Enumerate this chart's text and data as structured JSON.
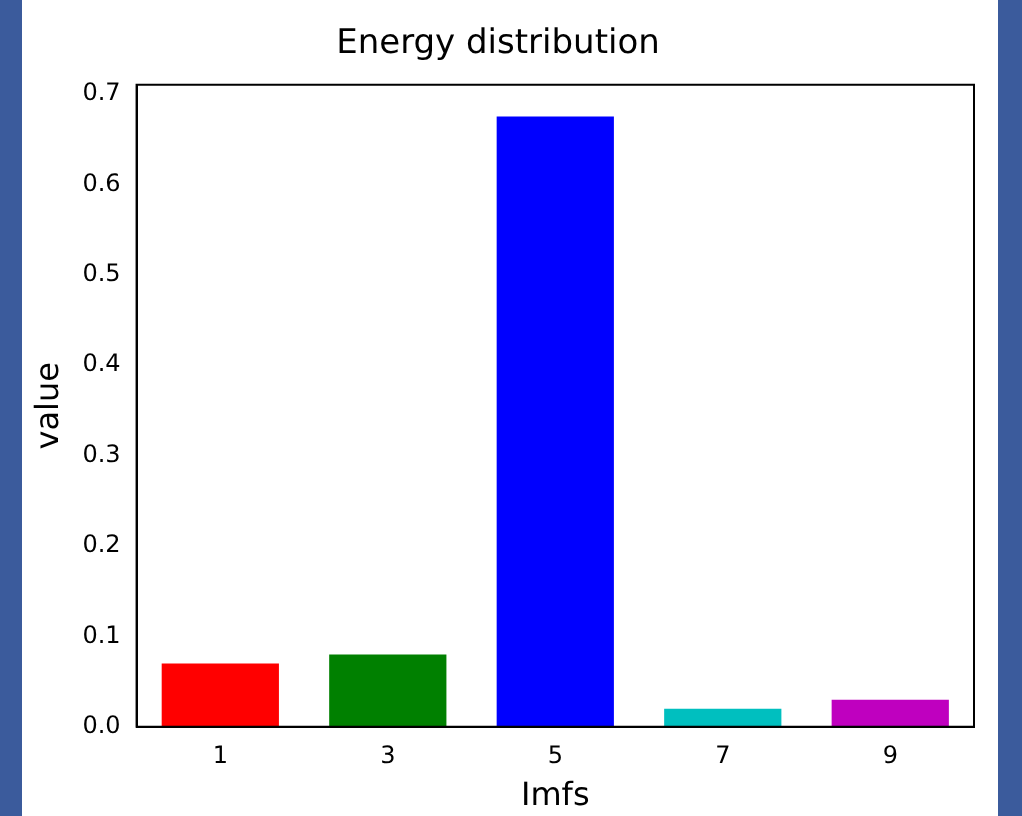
{
  "chart_data": {
    "type": "bar",
    "title": "Energy distribution",
    "xlabel": "Imfs",
    "ylabel": "value",
    "categories": [
      "1",
      "3",
      "5",
      "7",
      "9"
    ],
    "values": [
      0.07,
      0.08,
      0.675,
      0.02,
      0.03
    ],
    "colors": [
      "#ff0000",
      "#008000",
      "#0000ff",
      "#00bfbf",
      "#bf00bf"
    ],
    "ylim": [
      0,
      0.71
    ],
    "yticks": [
      {
        "value": 0,
        "label": "0.0"
      },
      0.1,
      0.2,
      0.3,
      0.4,
      0.5,
      0.6,
      0.7
    ],
    "grid": false,
    "legend": false
  }
}
